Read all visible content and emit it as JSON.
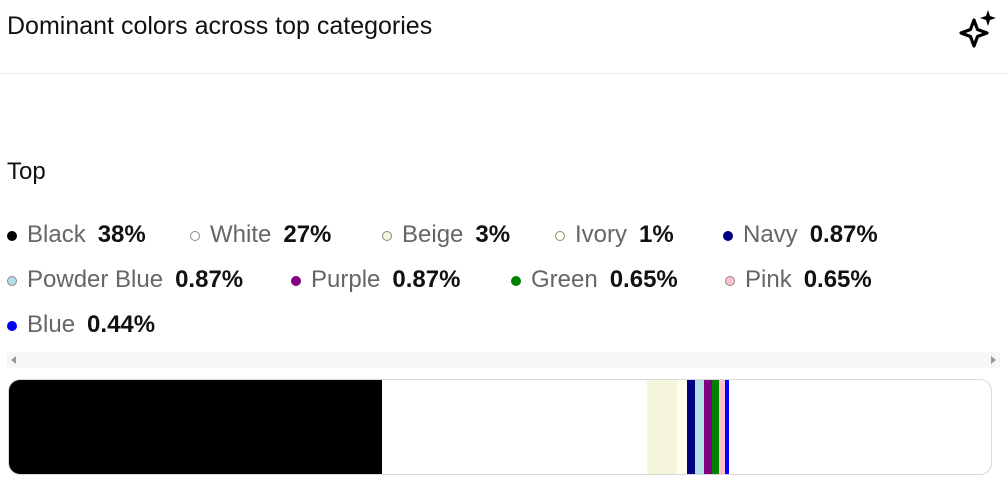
{
  "header": {
    "title": "Dominant colors across top categories",
    "action_icon": "sparkle-icon"
  },
  "section": {
    "label": "Top"
  },
  "colors": [
    {
      "name": "Black",
      "value": "38%",
      "percent": 38,
      "color": "#000000",
      "outlined": false
    },
    {
      "name": "White",
      "value": "27%",
      "percent": 27,
      "color": "#FFFFFF",
      "outlined": true
    },
    {
      "name": "Beige",
      "value": "3%",
      "percent": 3,
      "color": "#F5F5DC",
      "outlined": true
    },
    {
      "name": "Ivory",
      "value": "1%",
      "percent": 1,
      "color": "#FFFFF0",
      "outlined": true
    },
    {
      "name": "Navy",
      "value": "0.87%",
      "percent": 0.87,
      "color": "#000080",
      "outlined": false
    },
    {
      "name": "Powder Blue",
      "value": "0.87%",
      "percent": 0.87,
      "color": "#B0E0E6",
      "outlined": true
    },
    {
      "name": "Purple",
      "value": "0.87%",
      "percent": 0.87,
      "color": "#800080",
      "outlined": false
    },
    {
      "name": "Green",
      "value": "0.65%",
      "percent": 0.65,
      "color": "#008000",
      "outlined": false
    },
    {
      "name": "Pink",
      "value": "0.65%",
      "percent": 0.65,
      "color": "#FFC0CB",
      "outlined": true
    },
    {
      "name": "Blue",
      "value": "0.44%",
      "percent": 0.44,
      "color": "#0000FF",
      "outlined": false
    }
  ]
}
